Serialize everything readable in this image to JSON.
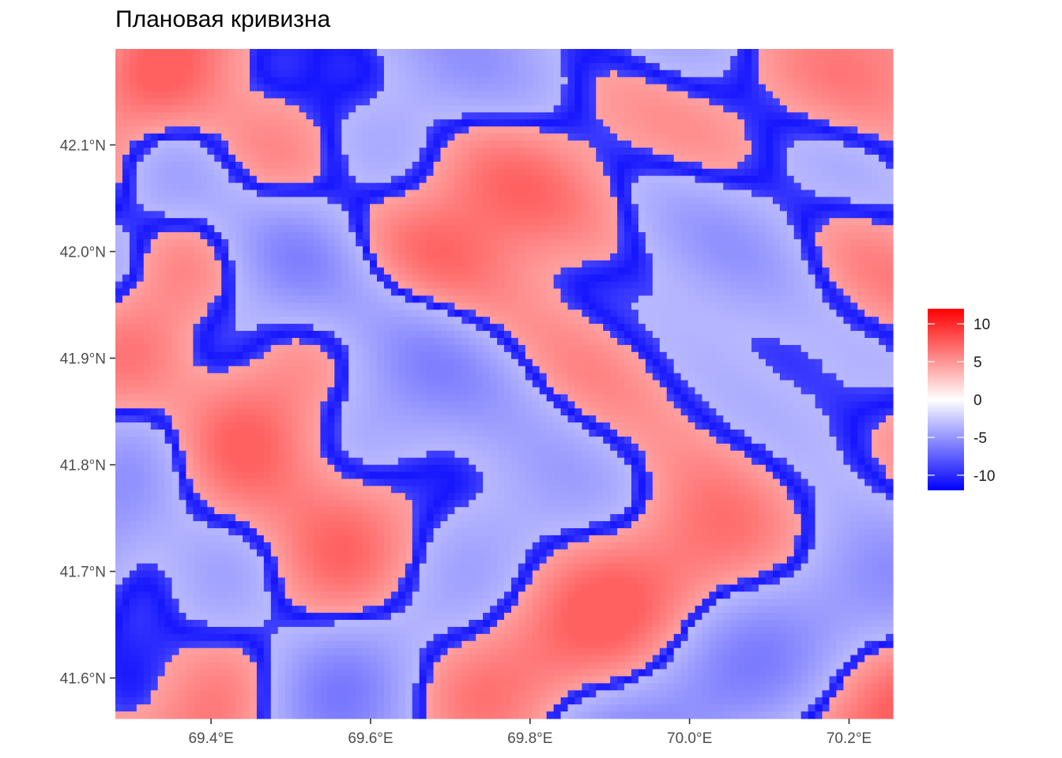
{
  "chart_data": {
    "type": "heatmap",
    "title": "Плановая кривизна",
    "xlabel": "",
    "ylabel": "",
    "xlim": [
      69.28,
      70.255
    ],
    "ylim": [
      41.562,
      42.19
    ],
    "x_ticks": [
      {
        "value": 69.4,
        "label": "69.4°E"
      },
      {
        "value": 69.6,
        "label": "69.6°E"
      },
      {
        "value": 69.8,
        "label": "69.8°E"
      },
      {
        "value": 70.0,
        "label": "70.0°E"
      },
      {
        "value": 70.2,
        "label": "70.2°E"
      }
    ],
    "y_ticks": [
      {
        "value": 42.1,
        "label": "42.1°N"
      },
      {
        "value": 42.0,
        "label": "42.0°N"
      },
      {
        "value": 41.9,
        "label": "41.9°N"
      },
      {
        "value": 41.8,
        "label": "41.8°N"
      },
      {
        "value": 41.7,
        "label": "41.7°N"
      },
      {
        "value": 41.6,
        "label": "41.6°N"
      }
    ],
    "colorscale": {
      "low": "#0000ff",
      "mid": "#ffffff",
      "high": "#ff0000",
      "min": -12,
      "max": 12,
      "legend_ticks": [
        {
          "value": 10,
          "label": "10"
        },
        {
          "value": 5,
          "label": "5"
        },
        {
          "value": 0,
          "label": "0"
        },
        {
          "value": -5,
          "label": "-5"
        },
        {
          "value": -10,
          "label": "-10"
        }
      ],
      "legend_position": "right"
    },
    "grid": false,
    "raster_resolution": [
      110,
      95
    ]
  }
}
